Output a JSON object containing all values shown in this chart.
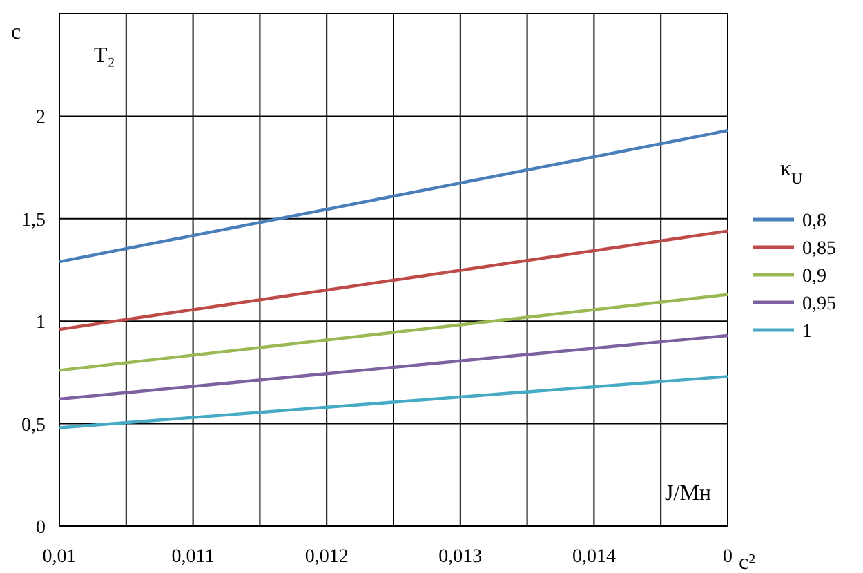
{
  "chart_data": {
    "type": "line",
    "ylabel": "c",
    "xlabel": "J/Mн",
    "legend_title": "κ$_{U}$",
    "annotations": [
      "T₂",
      "c²"
    ],
    "x": [
      0.01,
      0.015
    ],
    "xlim": [
      0.01,
      0.015
    ],
    "xticks": [
      {
        "value": 0.01,
        "label": "0,01"
      },
      {
        "value": 0.0105,
        "label": null
      },
      {
        "value": 0.011,
        "label": "0,011"
      },
      {
        "value": 0.0115,
        "label": null
      },
      {
        "value": 0.012,
        "label": "0,012"
      },
      {
        "value": 0.0125,
        "label": null
      },
      {
        "value": 0.013,
        "label": "0,013"
      },
      {
        "value": 0.0135,
        "label": null
      },
      {
        "value": 0.014,
        "label": "0,014"
      },
      {
        "value": 0.0145,
        "label": null
      },
      {
        "value": 0.015,
        "label": "0"
      }
    ],
    "ylim": [
      0,
      2.5
    ],
    "yticks": [
      0,
      {
        "value": 0.5,
        "label": "0,5"
      },
      1,
      {
        "value": 1.5,
        "label": "1,5"
      },
      2
    ],
    "grid": true,
    "legend": "right",
    "marker": "none",
    "line_style": "solid",
    "series": [
      {
        "name": "0,8",
        "color": "#4a7ebb",
        "values": [
          1.29,
          1.93
        ]
      },
      {
        "name": "0,85",
        "color": "#be4b48",
        "values": [
          0.96,
          1.44
        ]
      },
      {
        "name": "0,9",
        "color": "#98b954",
        "values": [
          0.76,
          1.13
        ]
      },
      {
        "name": "0,95",
        "color": "#7d60a0",
        "values": [
          0.62,
          0.93
        ]
      },
      {
        "name": "1",
        "color": "#46aac5",
        "values": [
          0.48,
          0.73
        ]
      }
    ]
  }
}
